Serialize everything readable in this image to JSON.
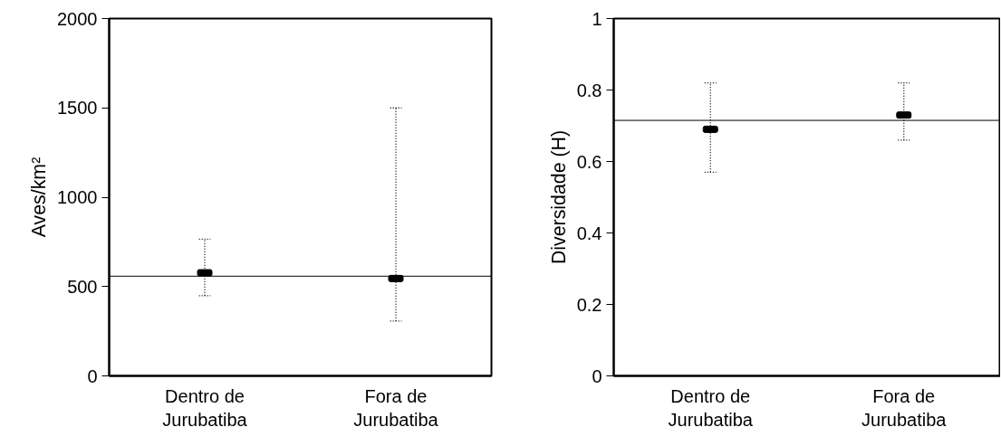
{
  "chart_data": [
    {
      "type": "scatter",
      "ylabel": "Aves/km²",
      "categories": [
        "Dentro de\nJurubatiba",
        "Fora de\nJurubatiba"
      ],
      "values": [
        577,
        545
      ],
      "errors": [
        [
          449,
          765
        ],
        [
          307,
          1500
        ]
      ],
      "color": "#000000",
      "ylim": [
        0,
        2000
      ],
      "yticks": [
        0,
        500,
        1000,
        1500,
        2000
      ],
      "ref_lines": [
        {
          "axis": "y",
          "value": 558,
          "color": "#000000"
        }
      ],
      "grid": false
    },
    {
      "type": "scatter",
      "ylabel": "Diversidade (H)",
      "categories": [
        "Dentro de\nJurubatiba",
        "Fora de\nJurubatiba"
      ],
      "values": [
        0.69,
        0.73
      ],
      "errors": [
        [
          0.57,
          0.82
        ],
        [
          0.66,
          0.82
        ]
      ],
      "color": "#000000",
      "ylim": [
        0,
        1
      ],
      "yticks": [
        0,
        0.2,
        0.4,
        0.6,
        0.8,
        1
      ],
      "ref_lines": [
        {
          "axis": "y",
          "value": 0.715,
          "color": "#000000"
        }
      ],
      "grid": false
    }
  ]
}
